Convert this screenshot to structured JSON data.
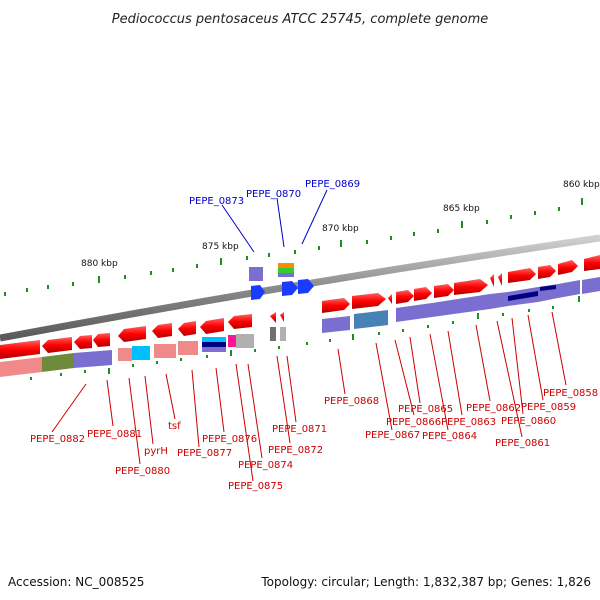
{
  "title": "Pediococcus pentosaceus ATCC 25745, complete genome",
  "footer": {
    "accession": "Accession: NC_008525",
    "topology": "Topology: circular; Length: 1,832,387 bp; Genes: 1,826"
  },
  "ticks": [
    "880 kbp",
    "875 kbp",
    "870 kbp",
    "865 kbp",
    "860 kbp"
  ],
  "labels": {
    "pepe_0882": "PEPE_0882",
    "pepe_0881": "PEPE_0881",
    "pepe_0880": "PEPE_0880",
    "pyrH": "pyrH",
    "tsf": "tsf",
    "pepe_0877": "PEPE_0877",
    "pepe_0876": "PEPE_0876",
    "pepe_0875": "PEPE_0875",
    "pepe_0874": "PEPE_0874",
    "pepe_0873": "PEPE_0873",
    "pepe_0872": "PEPE_0872",
    "pepe_0871": "PEPE_0871",
    "pepe_0870": "PEPE_0870",
    "pepe_0869": "PEPE_0869",
    "pepe_0868": "PEPE_0868",
    "pepe_0867": "PEPE_0867",
    "pepe_0866": "PEPE_0866",
    "pepe_0865": "PEPE_0865",
    "pepe_0864": "PEPE_0864",
    "pepe_0863": "PEPE_0863",
    "pepe_0862": "PEPE_0862",
    "pepe_0861": "PEPE_0861",
    "pepe_0860": "PEPE_0860",
    "pepe_0859": "PEPE_0859",
    "pepe_0858": "PEPE_0858"
  },
  "colors": {
    "forward_gene": "#ff1a1a",
    "reverse_gene": "#ff2020",
    "backbone": "#8c8c8c",
    "tick": "#228b22",
    "label_red": "#cc0000",
    "label_blue": "#0000cc",
    "cog_pink": "#f08a8a",
    "cog_purple": "#7a6fd0",
    "cog_olive": "#6e8b3d",
    "cog_cyan": "#00bfff",
    "cog_navy": "#000080",
    "cog_orange": "#ff8c00",
    "cog_green": "#32cd32",
    "cog_blue": "#1a3cff",
    "cog_grey": "#b0b0b0",
    "cog_magenta": "#ff1493",
    "cog_steel": "#4682b4"
  }
}
